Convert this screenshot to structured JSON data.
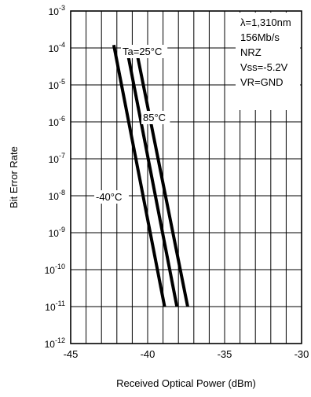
{
  "chart_data": {
    "type": "line",
    "xlabel": "Received Optical Power (dBm)",
    "ylabel": "Bit Error Rate",
    "xlim": [
      -45,
      -30
    ],
    "x_ticks": [
      {
        "value": -45,
        "label": "-45"
      },
      {
        "value": -40,
        "label": "-40"
      },
      {
        "value": -35,
        "label": "-35"
      },
      {
        "value": -30,
        "label": "-30"
      }
    ],
    "y_scale": "log",
    "ylim": [
      1e-12,
      0.001
    ],
    "y_ticks": [
      {
        "value": 0.001,
        "base": "10",
        "exp": "-3"
      },
      {
        "value": 0.0001,
        "base": "10",
        "exp": "-4"
      },
      {
        "value": 1e-05,
        "base": "10",
        "exp": "-5"
      },
      {
        "value": 1e-06,
        "base": "10",
        "exp": "-6"
      },
      {
        "value": 1e-07,
        "base": "10",
        "exp": "-7"
      },
      {
        "value": 1e-08,
        "base": "10",
        "exp": "-8"
      },
      {
        "value": 1e-09,
        "base": "10",
        "exp": "-9"
      },
      {
        "value": 1e-10,
        "base": "10",
        "exp": "-10"
      },
      {
        "value": 1e-11,
        "base": "10",
        "exp": "-11"
      },
      {
        "value": 1e-12,
        "base": "10",
        "exp": "-12"
      }
    ],
    "grid": true,
    "series": [
      {
        "name": "-40°C",
        "points": [
          [
            -42.2,
            0.00012
          ],
          [
            -38.9,
            1e-11
          ]
        ]
      },
      {
        "name": "Ta=25°C",
        "points": [
          [
            -41.4,
            0.00012
          ],
          [
            -38.1,
            1e-11
          ]
        ]
      },
      {
        "name": "85°C",
        "points": [
          [
            -40.8,
            0.00012
          ],
          [
            -37.4,
            1e-11
          ]
        ]
      }
    ],
    "annotation_lines": [
      "λ=1,310nm",
      "156Mb/s",
      "NRZ",
      "Vss=-5.2V",
      "VR=GND"
    ]
  }
}
